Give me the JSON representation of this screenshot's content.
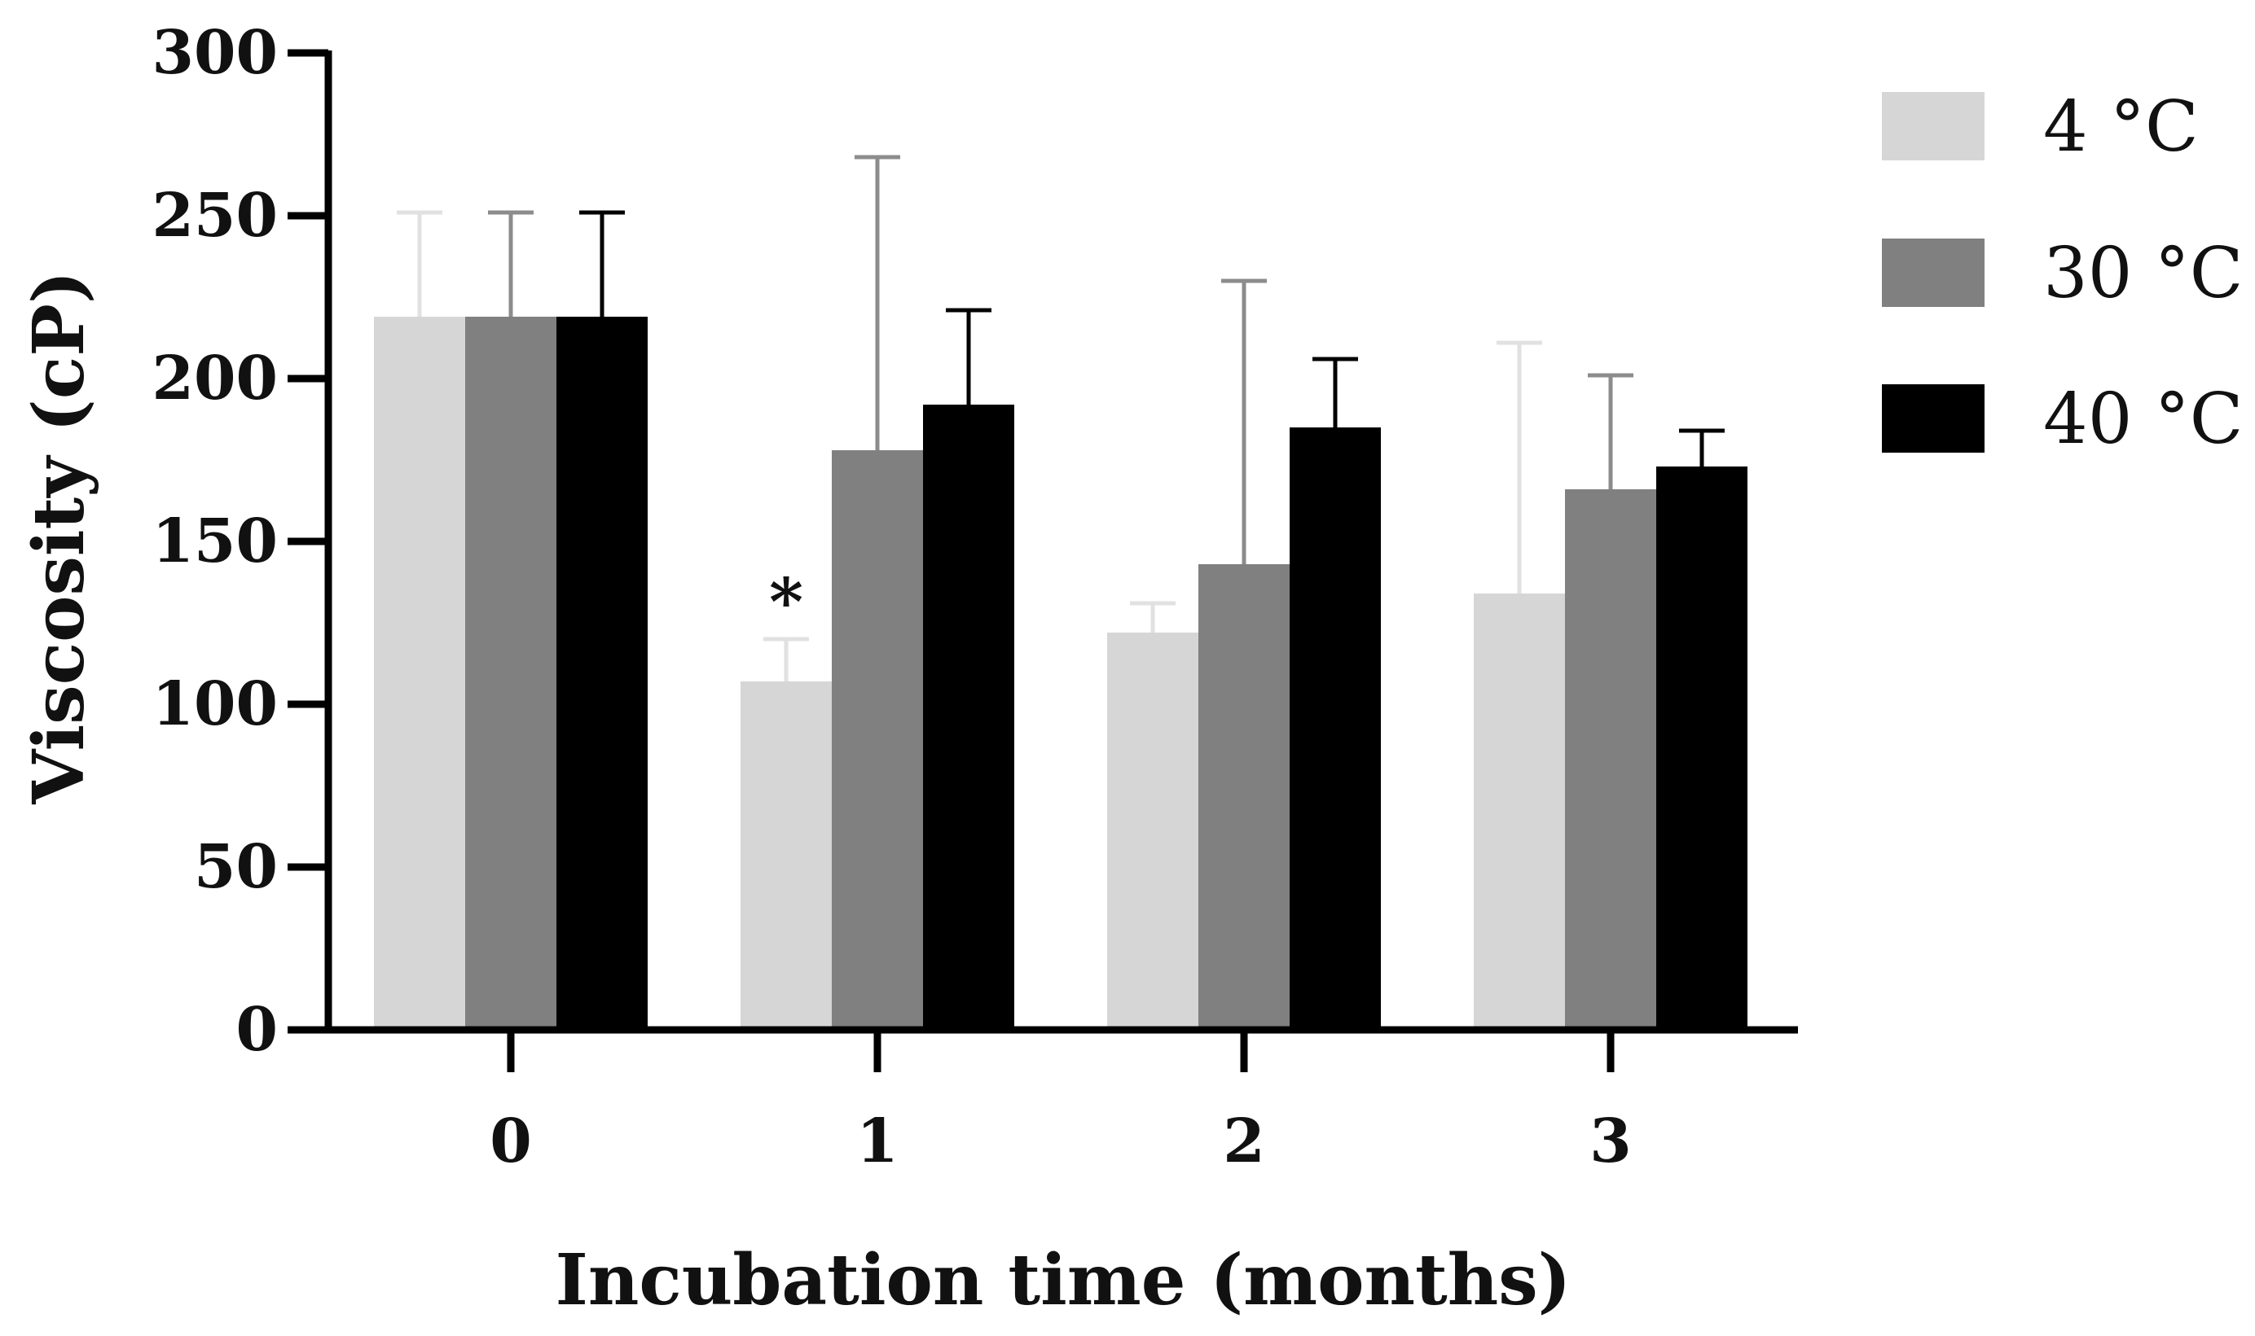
{
  "chart_data": {
    "type": "bar",
    "title": "",
    "xlabel": "Incubation time (months)",
    "ylabel": "Viscosity (cP)",
    "categories": [
      "0",
      "1",
      "2",
      "3"
    ],
    "ylim": [
      0,
      300
    ],
    "yticks": [
      0,
      50,
      100,
      150,
      200,
      250,
      300
    ],
    "grid": false,
    "legend_position": "top-right",
    "series": [
      {
        "name": "4 °C",
        "color": "#d6d6d6",
        "values": [
          219,
          107,
          122,
          134
        ],
        "errors": [
          32,
          13,
          9,
          77
        ]
      },
      {
        "name": "30 °C",
        "color": "#808080",
        "values": [
          219,
          178,
          143,
          166
        ],
        "errors": [
          32,
          90,
          87,
          35
        ]
      },
      {
        "name": "40 °C",
        "color": "#000000",
        "values": [
          219,
          192,
          185,
          173
        ],
        "errors": [
          32,
          29,
          21,
          11
        ]
      }
    ],
    "annotations": [
      {
        "text": "*",
        "category": "1",
        "series": "4 °C"
      }
    ]
  }
}
